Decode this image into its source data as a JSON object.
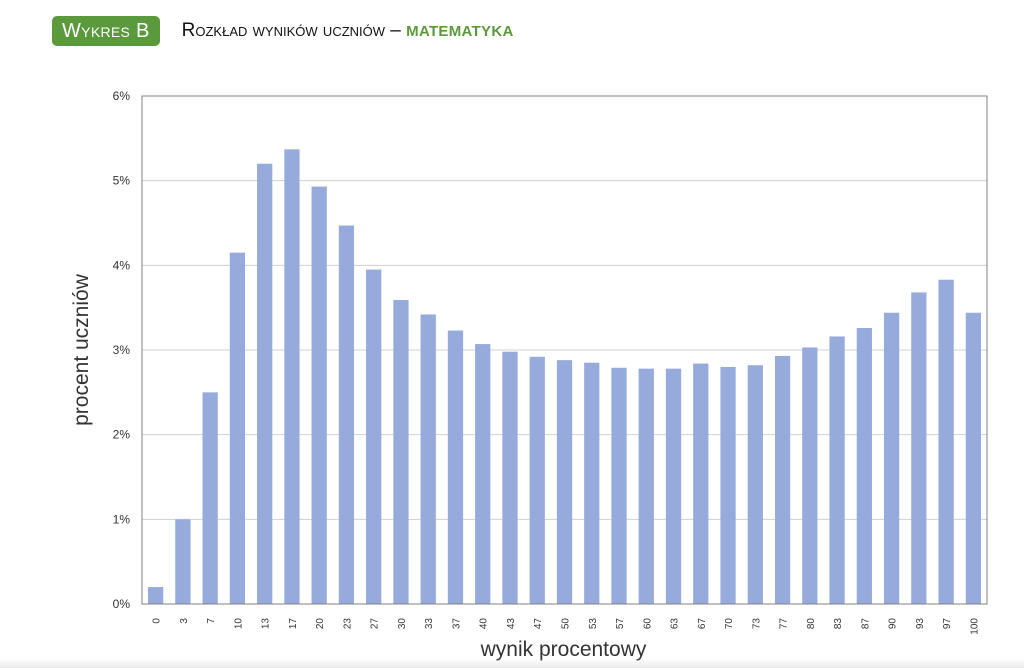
{
  "header": {
    "badge": "Wykres B",
    "title": "Rozkład wyników uczniów –",
    "subject": "MATEMATYKA"
  },
  "colors": {
    "accent": "#5b9a3c",
    "bar": "#96abdc",
    "grid": "#d0d0d0",
    "axis": "#808080"
  },
  "chart_data": {
    "type": "bar",
    "xlabel": "wynik procentowy",
    "ylabel": "procent uczniów",
    "categories": [
      "0",
      "3",
      "7",
      "10",
      "13",
      "17",
      "20",
      "23",
      "27",
      "30",
      "33",
      "37",
      "40",
      "43",
      "47",
      "50",
      "53",
      "57",
      "60",
      "63",
      "67",
      "70",
      "73",
      "77",
      "80",
      "83",
      "87",
      "90",
      "93",
      "97",
      "100"
    ],
    "values": [
      0.2,
      1.0,
      2.5,
      4.15,
      5.2,
      5.37,
      4.93,
      4.47,
      3.95,
      3.59,
      3.42,
      3.23,
      3.07,
      2.98,
      2.92,
      2.88,
      2.85,
      2.79,
      2.78,
      2.78,
      2.84,
      2.8,
      2.82,
      2.93,
      3.03,
      3.16,
      3.26,
      3.44,
      3.68,
      3.83,
      3.44
    ],
    "ylim": [
      0,
      6
    ],
    "yticks": [
      "0%",
      "1%",
      "2%",
      "3%",
      "4%",
      "5%",
      "6%"
    ],
    "grid": true,
    "legend": "none"
  }
}
